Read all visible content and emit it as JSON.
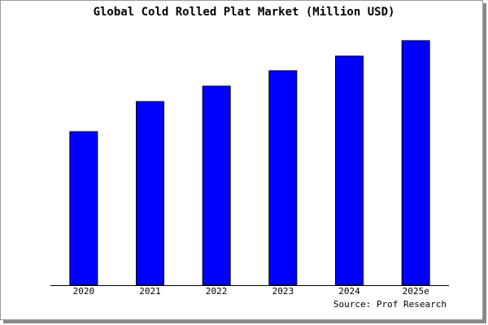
{
  "chart_data": {
    "type": "bar",
    "title": "Global Cold Rolled Plat Market (Million USD)",
    "categories": [
      "2020",
      "2021",
      "2022",
      "2023",
      "2024",
      "2025e"
    ],
    "values": [
      189,
      226,
      245,
      264,
      282,
      301
    ],
    "color": "#0000ff",
    "ylim": [
      0,
      301
    ],
    "source": "Source: Prof Research"
  }
}
